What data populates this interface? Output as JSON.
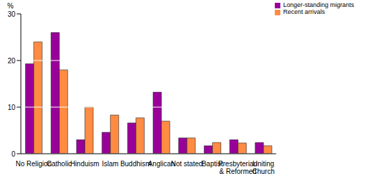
{
  "chart_data": {
    "type": "bar",
    "y_label": "%",
    "categories": [
      "No Religion",
      "Catholic",
      "Hinduism",
      "Islam",
      "Buddhism",
      "Anglican",
      "Not stated",
      "Baptist",
      "Presbyterian & Reformed",
      "Uniting Church"
    ],
    "series": [
      {
        "name": "Longer-standing migrants",
        "color": "#990099",
        "values": [
          19.3,
          26,
          3,
          4.6,
          6.6,
          13.2,
          3.4,
          1.7,
          3,
          2.4
        ]
      },
      {
        "name": "Recent arrivals",
        "color": "#ff8c42",
        "values": [
          24,
          18,
          10,
          8.3,
          7.7,
          7,
          3.4,
          2.4,
          2.3,
          1.7
        ]
      }
    ],
    "ylim": [
      0,
      30
    ],
    "yticks": [
      0,
      10,
      20,
      30
    ],
    "grid": true,
    "legend": "top-right"
  }
}
